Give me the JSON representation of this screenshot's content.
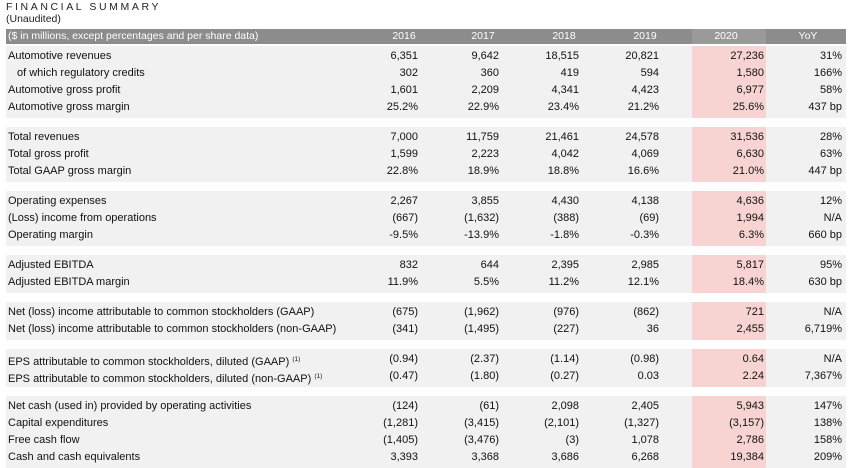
{
  "header": {
    "title": "FINANCIAL SUMMARY",
    "subtitle": "(Unaudited)"
  },
  "columns": {
    "label": "($ in millions, except percentages and per share data)",
    "y2016": "2016",
    "y2017": "2017",
    "y2018": "2018",
    "y2019": "2019",
    "y2020": "2020",
    "yoy": "YoY"
  },
  "colors": {
    "header_bg": "#8c8c8c",
    "highlight_2020": "#f7d4d2",
    "group_bg": "#f1f1f1"
  },
  "groups": [
    {
      "rows": [
        {
          "label": "Automotive revenues",
          "v2016": "6,351",
          "v2017": "9,642",
          "v2018": "18,515",
          "v2019": "20,821",
          "v2020": "27,236",
          "yoy": "31%"
        },
        {
          "label": "of which regulatory credits",
          "v2016": "302",
          "v2017": "360",
          "v2018": "419",
          "v2019": "594",
          "v2020": "1,580",
          "yoy": "166%"
        },
        {
          "label": "Automotive gross profit",
          "v2016": "1,601",
          "v2017": "2,209",
          "v2018": "4,341",
          "v2019": "4,423",
          "v2020": "6,977",
          "yoy": "58%"
        },
        {
          "label": "Automotive gross margin",
          "v2016": "25.2%",
          "v2017": "22.9%",
          "v2018": "23.4%",
          "v2019": "21.2%",
          "v2020": "25.6%",
          "yoy": "437 bp"
        }
      ]
    },
    {
      "rows": [
        {
          "label": "Total revenues",
          "v2016": "7,000",
          "v2017": "11,759",
          "v2018": "21,461",
          "v2019": "24,578",
          "v2020": "31,536",
          "yoy": "28%"
        },
        {
          "label": "Total gross profit",
          "v2016": "1,599",
          "v2017": "2,223",
          "v2018": "4,042",
          "v2019": "4,069",
          "v2020": "6,630",
          "yoy": "63%"
        },
        {
          "label": "Total GAAP gross margin",
          "v2016": "22.8%",
          "v2017": "18.9%",
          "v2018": "18.8%",
          "v2019": "16.6%",
          "v2020": "21.0%",
          "yoy": "447 bp"
        }
      ]
    },
    {
      "rows": [
        {
          "label": "Operating expenses",
          "v2016": "2,267",
          "v2017": "3,855",
          "v2018": "4,430",
          "v2019": "4,138",
          "v2020": "4,636",
          "yoy": "12%"
        },
        {
          "label": "(Loss) income from operations",
          "v2016": "(667)",
          "v2017": "(1,632)",
          "v2018": "(388)",
          "v2019": "(69)",
          "v2020": "1,994",
          "yoy": "N/A"
        },
        {
          "label": "Operating margin",
          "v2016": "-9.5%",
          "v2017": "-13.9%",
          "v2018": "-1.8%",
          "v2019": "-0.3%",
          "v2020": "6.3%",
          "yoy": "660 bp"
        }
      ]
    },
    {
      "rows": [
        {
          "label": "Adjusted EBITDA",
          "v2016": "832",
          "v2017": "644",
          "v2018": "2,395",
          "v2019": "2,985",
          "v2020": "5,817",
          "yoy": "95%"
        },
        {
          "label": "Adjusted EBITDA margin",
          "v2016": "11.9%",
          "v2017": "5.5%",
          "v2018": "11.2%",
          "v2019": "12.1%",
          "v2020": "18.4%",
          "yoy": "630 bp"
        }
      ]
    },
    {
      "rows": [
        {
          "label": "Net (loss) income attributable to common stockholders (GAAP)",
          "v2016": "(675)",
          "v2017": "(1,962)",
          "v2018": "(976)",
          "v2019": "(862)",
          "v2020": "721",
          "yoy": "N/A"
        },
        {
          "label": "Net (loss) income attributable to common stockholders (non-GAAP)",
          "v2016": "(341)",
          "v2017": "(1,495)",
          "v2018": "(227)",
          "v2019": "36",
          "v2020": "2,455",
          "yoy": "6,719%"
        }
      ]
    },
    {
      "rows": [
        {
          "label": "EPS attributable to common stockholders, diluted (GAAP)",
          "sup": "(1)",
          "v2016": "(0.94)",
          "v2017": "(2.37)",
          "v2018": "(1.14)",
          "v2019": "(0.98)",
          "v2020": "0.64",
          "yoy": "N/A"
        },
        {
          "label": "EPS attributable to common stockholders, diluted (non-GAAP)",
          "sup": "(1)",
          "v2016": "(0.47)",
          "v2017": "(1.80)",
          "v2018": "(0.27)",
          "v2019": "0.03",
          "v2020": "2.24",
          "yoy": "7,367%"
        }
      ]
    },
    {
      "rows": [
        {
          "label": "Net cash (used in) provided by operating activities",
          "v2016": "(124)",
          "v2017": "(61)",
          "v2018": "2,098",
          "v2019": "2,405",
          "v2020": "5,943",
          "yoy": "147%"
        },
        {
          "label": "Capital expenditures",
          "v2016": "(1,281)",
          "v2017": "(3,415)",
          "v2018": "(2,101)",
          "v2019": "(1,327)",
          "v2020": "(3,157)",
          "yoy": "138%"
        },
        {
          "label": "Free cash flow",
          "v2016": "(1,405)",
          "v2017": "(3,476)",
          "v2018": "(3)",
          "v2019": "1,078",
          "v2020": "2,786",
          "yoy": "158%"
        },
        {
          "label": "Cash and cash equivalents",
          "v2016": "3,393",
          "v2017": "3,368",
          "v2018": "3,686",
          "v2019": "6,268",
          "v2020": "19,384",
          "yoy": "209%"
        }
      ]
    }
  ]
}
